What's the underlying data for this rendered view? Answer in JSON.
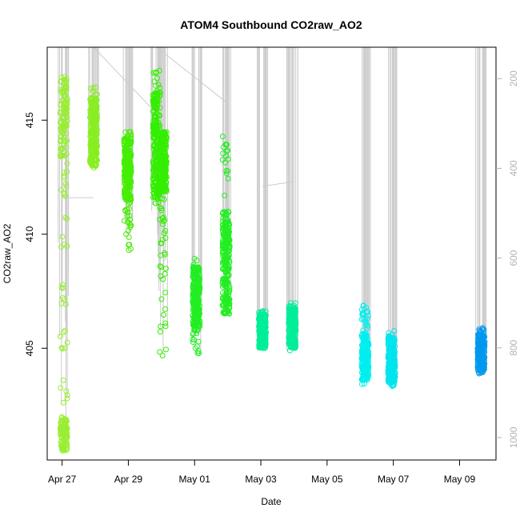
{
  "chart_data": {
    "type": "scatter",
    "title": "ATOM4 Southbound CO2raw_AO2",
    "xlabel": "Date",
    "ylabel": "CO2raw_AO2",
    "x_ticks": [
      "Apr 27",
      "Apr 29",
      "May 01",
      "May 03",
      "May 05",
      "May 07",
      "May 09"
    ],
    "x_tick_days": [
      0,
      2,
      4,
      6,
      8,
      10,
      12
    ],
    "xlim_days": [
      -0.45,
      13.1
    ],
    "ylim": [
      400.1,
      418.2
    ],
    "y_ticks": [
      405,
      410,
      415
    ],
    "y_tick_labels": [
      "405",
      "410",
      "415"
    ],
    "right_axis": {
      "label": "",
      "lim": [
        1050,
        130
      ],
      "ticks": [
        200,
        400,
        600,
        800,
        1000
      ],
      "tick_labels": [
        "200",
        "400",
        "600",
        "800",
        "1000"
      ],
      "color": "#b3b3b3",
      "description": "pressure-style profile shown as grey vertical lines, inverted axis"
    },
    "series": [
      {
        "x": 0.05,
        "y_min": 400.4,
        "y_max": 417.1,
        "dense": [
          [
            413.3,
            416.9
          ],
          [
            400.5,
            402.0
          ]
        ],
        "color": "#99ee33"
      },
      {
        "x": 0.95,
        "y_min": 412.9,
        "y_max": 416.5,
        "dense": [
          [
            413.0,
            416.0
          ]
        ],
        "color": "#88ee22"
      },
      {
        "x": 1.98,
        "y_min": 409.3,
        "y_max": 414.6,
        "dense": [
          [
            411.5,
            414.3
          ]
        ],
        "color": "#44ee00"
      },
      {
        "x": 2.85,
        "y_min": 411.0,
        "y_max": 417.2,
        "dense": [
          [
            411.5,
            416.2
          ]
        ],
        "color": "#33ee00"
      },
      {
        "x": 3.05,
        "y_min": 404.6,
        "y_max": 414.5,
        "dense": [
          [
            411.8,
            414.5
          ]
        ],
        "color": "#33ee00"
      },
      {
        "x": 4.05,
        "y_min": 404.6,
        "y_max": 409.1,
        "dense": [
          [
            405.8,
            408.6
          ]
        ],
        "color": "#22ee22"
      },
      {
        "x": 4.95,
        "y_min": 406.3,
        "y_max": 414.7,
        "dense": [
          [
            406.5,
            411.0
          ]
        ],
        "color": "#22ee22"
      },
      {
        "x": 6.05,
        "y_min": 404.9,
        "y_max": 406.7,
        "dense": [
          [
            405.0,
            406.5
          ]
        ],
        "color": "#00ee99"
      },
      {
        "x": 6.95,
        "y_min": 404.9,
        "y_max": 407.0,
        "dense": [
          [
            405.0,
            406.8
          ]
        ],
        "color": "#00ee99"
      },
      {
        "x": 9.15,
        "y_min": 403.4,
        "y_max": 406.9,
        "dense": [
          [
            403.6,
            405.6
          ]
        ],
        "color": "#00eeee"
      },
      {
        "x": 9.95,
        "y_min": 403.3,
        "y_max": 405.8,
        "dense": [
          [
            403.5,
            405.5
          ]
        ],
        "color": "#00e4ee"
      },
      {
        "x": 12.65,
        "y_min": 403.8,
        "y_max": 405.9,
        "dense": [
          [
            404.0,
            405.6
          ]
        ],
        "color": "#0099ee"
      }
    ],
    "profile_lines_color": "#cccccc",
    "grid": false,
    "legend": "none"
  }
}
